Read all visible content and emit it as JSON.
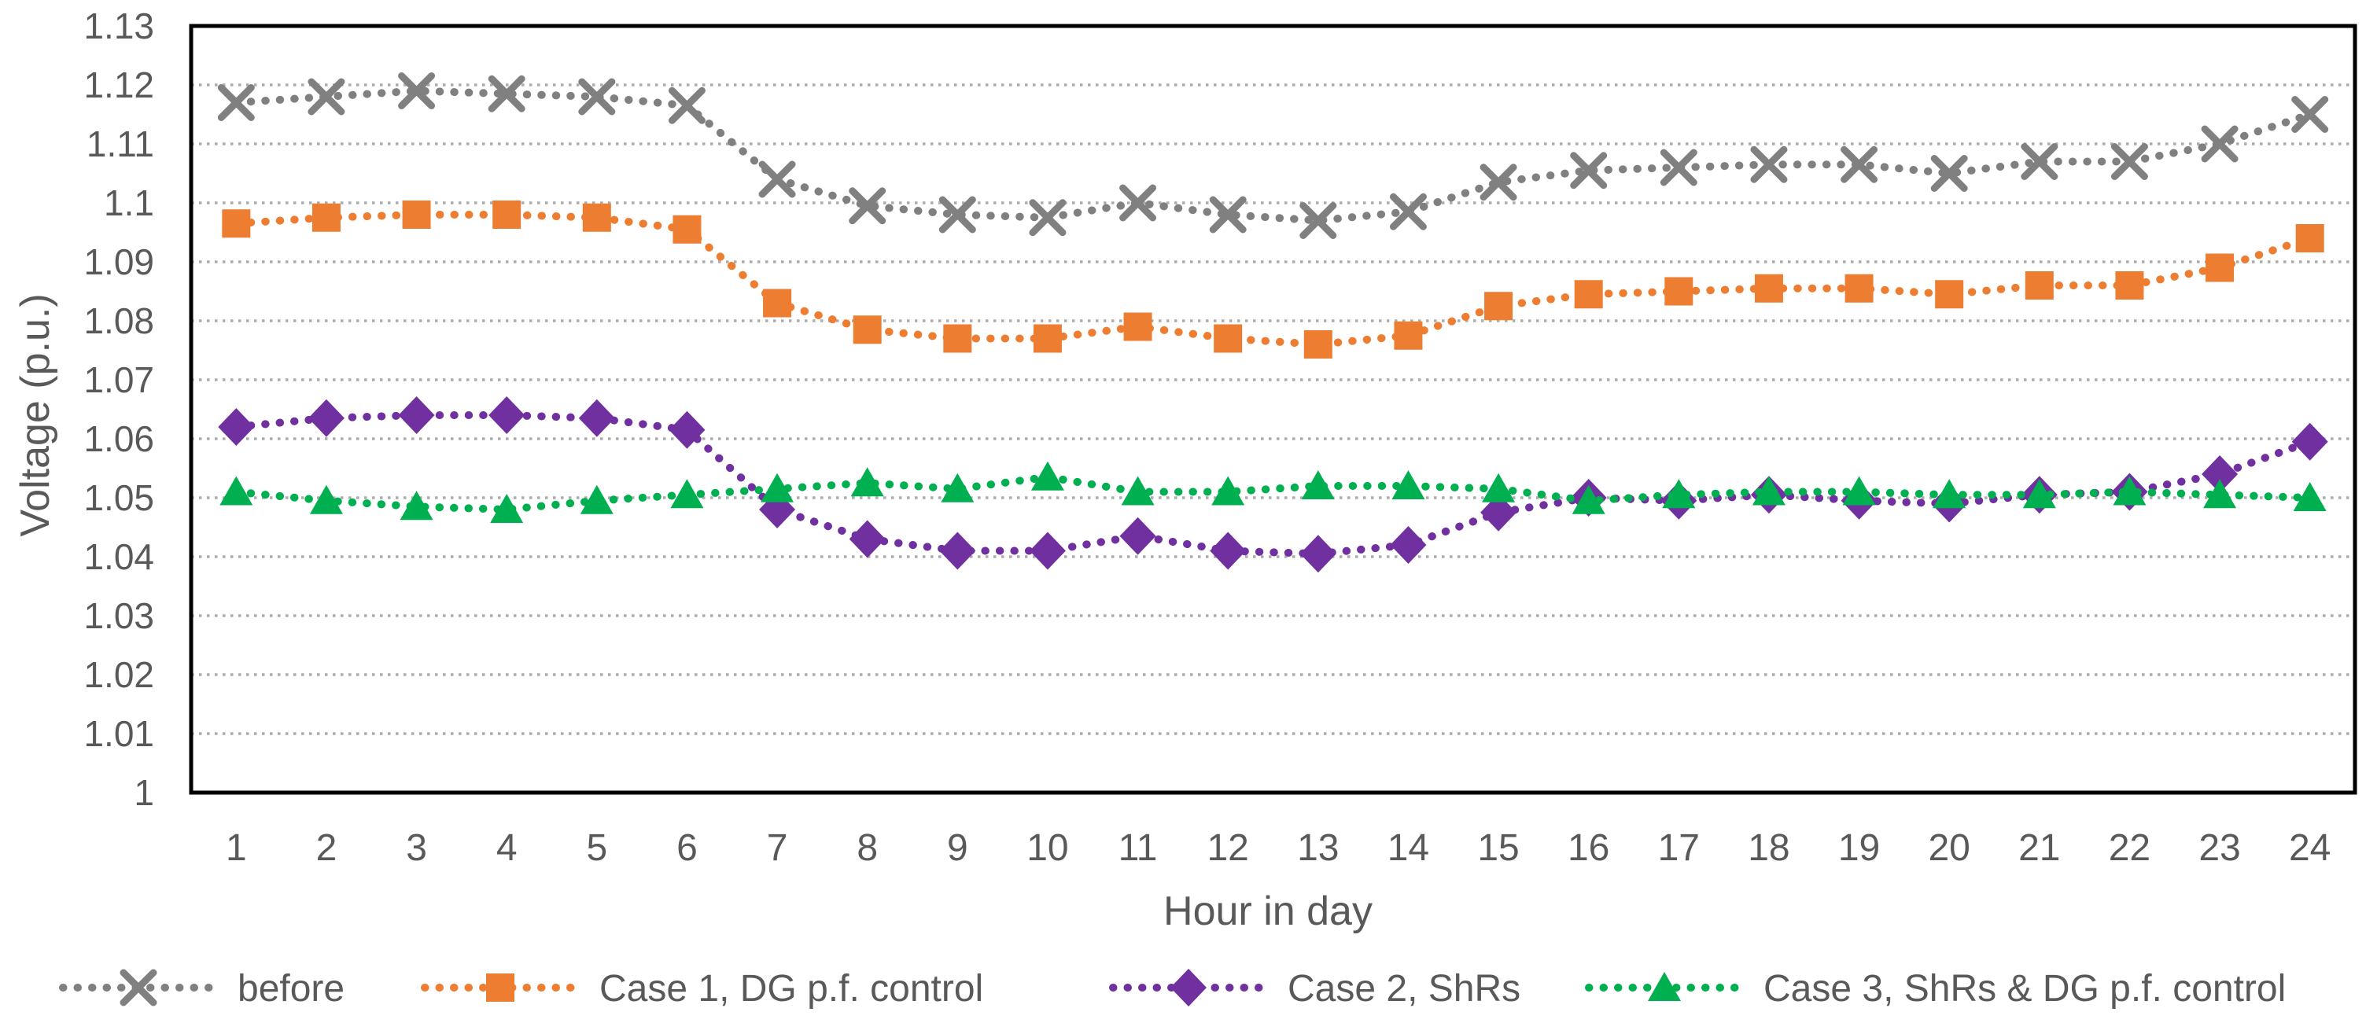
{
  "chart_data": {
    "type": "line",
    "title": "",
    "xlabel": "Hour in day",
    "ylabel": "Voltage (p.u.)",
    "x": [
      1,
      2,
      3,
      4,
      5,
      6,
      7,
      8,
      9,
      10,
      11,
      12,
      13,
      14,
      15,
      16,
      17,
      18,
      19,
      20,
      21,
      22,
      23,
      24
    ],
    "ylim": [
      1.0,
      1.13
    ],
    "ytick_interval": 0.01,
    "ytick_labels": [
      "1",
      "1.01",
      "1.02",
      "1.03",
      "1.04",
      "1.05",
      "1.06",
      "1.07",
      "1.08",
      "1.09",
      "1.1",
      "1.11",
      "1.12",
      "1.13"
    ],
    "grid": "horizontal dotted gridlines at every 0.01",
    "legend_position": "bottom",
    "line_style": "round-dot dotted lines with markers",
    "series": [
      {
        "name": "before",
        "color": "#808080",
        "marker": "x",
        "values": [
          1.117,
          1.118,
          1.119,
          1.1185,
          1.118,
          1.1165,
          1.104,
          1.0995,
          1.098,
          1.0975,
          1.1,
          1.098,
          1.097,
          1.0985,
          1.1035,
          1.1055,
          1.106,
          1.1065,
          1.1065,
          1.105,
          1.107,
          1.107,
          1.11,
          1.115
        ]
      },
      {
        "name": "Case 1, DG p.f. control",
        "color": "#ED7D31",
        "marker": "square",
        "values": [
          1.0965,
          1.0975,
          1.098,
          1.098,
          1.0975,
          1.0955,
          1.083,
          1.0785,
          1.077,
          1.077,
          1.079,
          1.077,
          1.076,
          1.0775,
          1.0825,
          1.0845,
          1.085,
          1.0855,
          1.0855,
          1.0845,
          1.086,
          1.086,
          1.089,
          1.094
        ]
      },
      {
        "name": "Case 2, ShRs",
        "color": "#7030A0",
        "marker": "diamond",
        "values": [
          1.062,
          1.0635,
          1.064,
          1.064,
          1.0635,
          1.0615,
          1.048,
          1.043,
          1.041,
          1.041,
          1.0435,
          1.041,
          1.0405,
          1.042,
          1.0475,
          1.05,
          1.0495,
          1.0505,
          1.0495,
          1.049,
          1.0505,
          1.051,
          1.054,
          1.0595
        ]
      },
      {
        "name": "Case 3, ShRs & DG p.f. control",
        "color": "#00B050",
        "marker": "triangle",
        "values": [
          1.051,
          1.0495,
          1.0485,
          1.048,
          1.0495,
          1.0505,
          1.0515,
          1.0525,
          1.0515,
          1.0535,
          1.051,
          1.051,
          1.052,
          1.052,
          1.0515,
          1.0495,
          1.0505,
          1.051,
          1.051,
          1.0505,
          1.0505,
          1.051,
          1.0505,
          1.05
        ]
      }
    ]
  },
  "colors": {
    "text": "#595959",
    "grid": "#ABABAB",
    "plot_border": "#000000",
    "background": "#FFFFFF"
  }
}
